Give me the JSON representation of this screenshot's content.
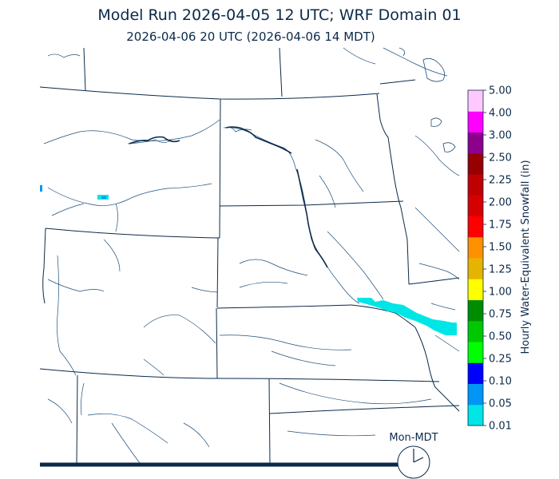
{
  "title": {
    "line1": "Model Run 2026-04-05 12 UTC; WRF Domain 01",
    "line2": "2026-04-06 20 UTC  (2026-04-06 14 MDT)"
  },
  "colorbar": {
    "axis_title": "Hourly Water-Equivalent Snowfall (in)",
    "ticks": [
      "0.01",
      "0.05",
      "0.10",
      "0.25",
      "0.50",
      "0.75",
      "1.00",
      "1.25",
      "1.50",
      "1.75",
      "2.00",
      "2.25",
      "2.50",
      "3.00",
      "4.00",
      "5.00"
    ],
    "colors": [
      "#00e6e6",
      "#0096f5",
      "#0000ff",
      "#00ff00",
      "#00c800",
      "#008c00",
      "#ffff00",
      "#e6b400",
      "#ff9100",
      "#ff0000",
      "#d70000",
      "#c00000",
      "#960000",
      "#8c008c",
      "#ff00ff",
      "#ffc8ff"
    ]
  },
  "clock": {
    "label": "Mon-MDT",
    "hour": 2
  },
  "colors": {
    "boundary": "#0b2a4a",
    "river": "#1f4e7a",
    "snow_light": "#00e6e6",
    "snow_medium": "#0096f5"
  }
}
